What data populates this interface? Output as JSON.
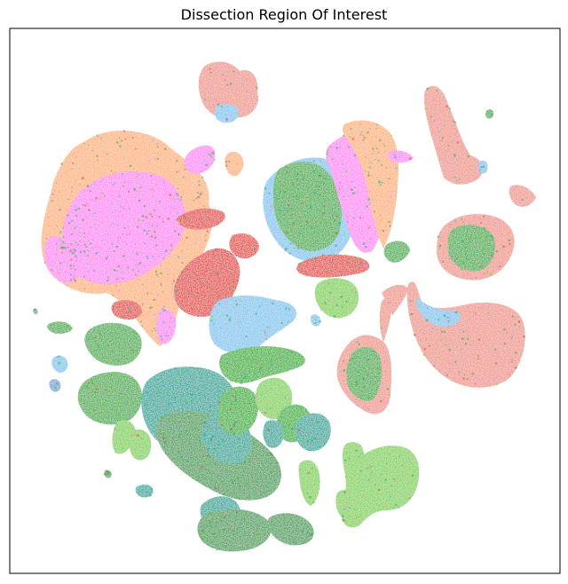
{
  "chart_data": {
    "type": "scatter",
    "title": "Dissection Region Of Interest",
    "xlabel": "",
    "ylabel": "",
    "axes_ticks": false,
    "legend": "none",
    "palette": {
      "pink": "#ff87f5",
      "peach": "#ffb27a",
      "red": "#e5403b",
      "sky": "#7fc6f0",
      "green": "#3fae45",
      "teal": "#17a799",
      "lime": "#7ed24e",
      "bright_green": "#2fb22c",
      "steel": "#7ca6d8",
      "olive_green": "#3e9e4f",
      "salmon": "#f0958a"
    }
  }
}
